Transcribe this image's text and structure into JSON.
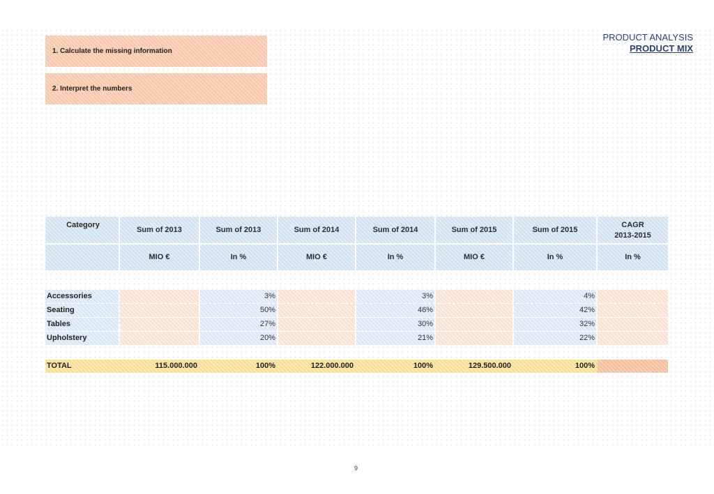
{
  "tasks": [
    {
      "label": "1. Calculate the missing information"
    },
    {
      "label": "2. Interpret the numbers"
    }
  ],
  "header": {
    "title": "PRODUCT ANALYSIS",
    "subtitle": "PRODUCT MIX"
  },
  "table": {
    "headers": [
      "Category",
      "Sum of 2013",
      "Sum of 2013",
      "Sum of 2014",
      "Sum of 2014",
      "Sum of 2015",
      "Sum of 2015",
      "CAGR",
      "2013-2015"
    ],
    "units": [
      "MIO €",
      "In %",
      "MIO €",
      "In %",
      "MIO €",
      "In %",
      "In %"
    ],
    "rows": [
      {
        "category": "Accessories",
        "p2013": "3%",
        "p2014": "3%",
        "p2015": "4%"
      },
      {
        "category": "Seating",
        "p2013": "50%",
        "p2014": "46%",
        "p2015": "42%"
      },
      {
        "category": "Tables",
        "p2013": "27%",
        "p2014": "30%",
        "p2015": "32%"
      },
      {
        "category": "Upholstery",
        "p2013": "20%",
        "p2014": "21%",
        "p2015": "22%"
      }
    ],
    "total": {
      "label": "TOTAL",
      "m2013": "115.000.000",
      "p2013": "100%",
      "m2014": "122.000.000",
      "p2014": "100%",
      "m2015": "129.500.000",
      "p2015": "100%"
    }
  },
  "page_number": "9"
}
